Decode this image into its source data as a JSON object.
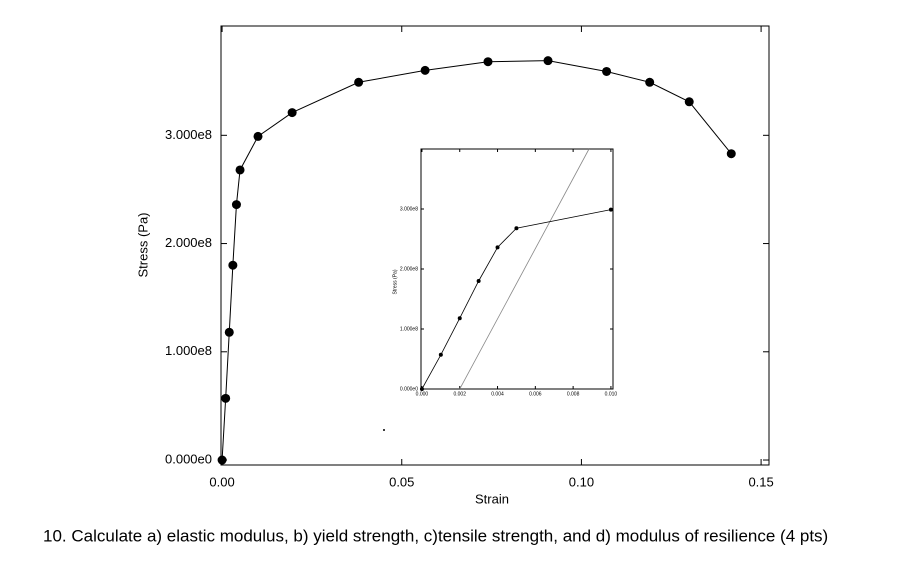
{
  "chart_data": [
    {
      "type": "line",
      "x_label": "Strain",
      "y_label": "Stress (Pa)",
      "color": "#000000",
      "x": [
        0,
        0.001,
        0.002,
        0.003,
        0.004,
        0.005,
        0.01,
        0.0195,
        0.038,
        0.0565,
        0.074,
        0.0907,
        0.107,
        0.119,
        0.13,
        0.1417
      ],
      "values": [
        0,
        57000000,
        118000000,
        180000000,
        236000000,
        268000000,
        299000000,
        321000000,
        349000000,
        360000000,
        368000000,
        369000000,
        359000000,
        349000000,
        331000000,
        283000000
      ],
      "xlim": [
        -0.0003,
        0.1522
      ],
      "ylim": [
        -4600000,
        401000000
      ],
      "xticks": [
        {
          "value": 0,
          "label": "0.00"
        },
        0.05,
        {
          "value": 0.1,
          "label": "0.10"
        },
        0.15
      ],
      "yticks": [
        {
          "value": 0,
          "label": "0.000e0"
        },
        {
          "value": 100000000,
          "label": "1.000e8"
        },
        {
          "value": 200000000,
          "label": "2.000e8"
        },
        {
          "value": 300000000,
          "label": "3.000e8"
        }
      ]
    },
    {
      "type": "line",
      "y_label": "Stress (Pa)",
      "color": "#000000",
      "x": [
        0,
        0.001,
        0.002,
        0.003,
        0.004,
        0.005,
        0.01
      ],
      "values": [
        0,
        57000000,
        118000000,
        180000000,
        236000000,
        268000000,
        299000000
      ],
      "offset_line": {
        "x": [
          0.002,
          0.00884
        ],
        "values": [
          0,
          400000000
        ],
        "color": "#888888"
      },
      "xlim": [
        -5e-05,
        0.01011
      ],
      "ylim": [
        0,
        400000000
      ],
      "xticks": [
        {
          "value": 0,
          "label": "0.000"
        },
        {
          "value": 0.002,
          "label": "0.002"
        },
        {
          "value": 0.004,
          "label": "0.004"
        },
        {
          "value": 0.006,
          "label": "0.006"
        },
        {
          "value": 0.008,
          "label": "0.008"
        },
        {
          "value": 0.01,
          "label": "0.010"
        }
      ],
      "yticks": [
        {
          "value": 0,
          "label": "0.000e0"
        },
        {
          "value": 100000000,
          "label": "1.000e8"
        },
        {
          "value": 200000000,
          "label": "2.000e8"
        },
        {
          "value": 300000000,
          "label": "3.000e8"
        }
      ]
    }
  ],
  "question": "10. Calculate a) elastic modulus, b) yield strength, c)tensile strength, and d) modulus of resilience (4 pts)"
}
